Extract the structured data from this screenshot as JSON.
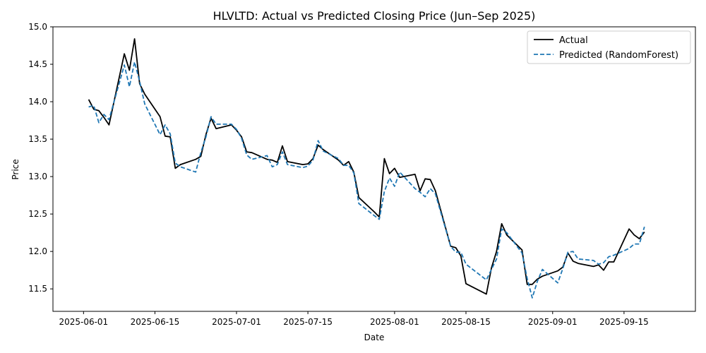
{
  "chart_data": {
    "type": "line",
    "title": "HLVLTD: Actual vs Predicted Closing Price (Jun–Sep 2025)",
    "xlabel": "Date",
    "ylabel": "Price",
    "xlim": [
      "2025-05-26",
      "2025-09-29"
    ],
    "ylim": [
      11.2,
      15.0
    ],
    "x_ticks": [
      "2025-06-01",
      "2025-06-15",
      "2025-07-01",
      "2025-07-15",
      "2025-08-01",
      "2025-08-15",
      "2025-09-01",
      "2025-09-15"
    ],
    "y_ticks": [
      11.5,
      12.0,
      12.5,
      13.0,
      13.5,
      14.0,
      14.5,
      15.0
    ],
    "y_tick_labels": [
      "11.5",
      "12.0",
      "12.5",
      "13.0",
      "13.5",
      "14.0",
      "14.5",
      "15.0"
    ],
    "grid": false,
    "legend_position": "top-right",
    "series": [
      {
        "name": "Actual",
        "color": "#000000",
        "style": "solid",
        "points": [
          [
            "2025-06-02",
            14.03
          ],
          [
            "2025-06-03",
            13.9
          ],
          [
            "2025-06-04",
            13.88
          ],
          [
            "2025-06-05",
            13.79
          ],
          [
            "2025-06-06",
            13.69
          ],
          [
            "2025-06-09",
            14.64
          ],
          [
            "2025-06-10",
            14.42
          ],
          [
            "2025-06-11",
            14.84
          ],
          [
            "2025-06-12",
            14.24
          ],
          [
            "2025-06-13",
            14.1
          ],
          [
            "2025-06-16",
            13.8
          ],
          [
            "2025-06-17",
            13.54
          ],
          [
            "2025-06-18",
            13.53
          ],
          [
            "2025-06-19",
            13.11
          ],
          [
            "2025-06-20",
            13.16
          ],
          [
            "2025-06-23",
            13.23
          ],
          [
            "2025-06-24",
            13.27
          ],
          [
            "2025-06-25",
            13.56
          ],
          [
            "2025-06-26",
            13.78
          ],
          [
            "2025-06-27",
            13.64
          ],
          [
            "2025-06-30",
            13.69
          ],
          [
            "2025-07-01",
            13.62
          ],
          [
            "2025-07-02",
            13.53
          ],
          [
            "2025-07-03",
            13.33
          ],
          [
            "2025-07-04",
            13.32
          ],
          [
            "2025-07-07",
            13.23
          ],
          [
            "2025-07-08",
            13.22
          ],
          [
            "2025-07-09",
            13.19
          ],
          [
            "2025-07-10",
            13.41
          ],
          [
            "2025-07-11",
            13.2
          ],
          [
            "2025-07-14",
            13.16
          ],
          [
            "2025-07-15",
            13.17
          ],
          [
            "2025-07-16",
            13.24
          ],
          [
            "2025-07-17",
            13.42
          ],
          [
            "2025-07-18",
            13.36
          ],
          [
            "2025-07-21",
            13.22
          ],
          [
            "2025-07-22",
            13.15
          ],
          [
            "2025-07-23",
            13.2
          ],
          [
            "2025-07-24",
            13.06
          ],
          [
            "2025-07-25",
            12.72
          ],
          [
            "2025-07-28",
            12.53
          ],
          [
            "2025-07-29",
            12.46
          ],
          [
            "2025-07-30",
            13.24
          ],
          [
            "2025-07-31",
            13.04
          ],
          [
            "2025-08-01",
            13.11
          ],
          [
            "2025-08-02",
            12.99
          ],
          [
            "2025-08-05",
            13.03
          ],
          [
            "2025-08-06",
            12.81
          ],
          [
            "2025-08-07",
            12.97
          ],
          [
            "2025-08-08",
            12.96
          ],
          [
            "2025-08-09",
            12.81
          ],
          [
            "2025-08-12",
            12.07
          ],
          [
            "2025-08-13",
            12.05
          ],
          [
            "2025-08-14",
            11.94
          ],
          [
            "2025-08-15",
            11.57
          ],
          [
            "2025-08-19",
            11.43
          ],
          [
            "2025-08-20",
            11.78
          ],
          [
            "2025-08-21",
            12.0
          ],
          [
            "2025-08-22",
            12.37
          ],
          [
            "2025-08-23",
            12.22
          ],
          [
            "2025-08-26",
            12.02
          ],
          [
            "2025-08-27",
            11.56
          ],
          [
            "2025-08-28",
            11.56
          ],
          [
            "2025-08-29",
            11.63
          ],
          [
            "2025-08-30",
            11.67
          ],
          [
            "2025-09-02",
            11.74
          ],
          [
            "2025-09-03",
            11.79
          ],
          [
            "2025-09-04",
            11.98
          ],
          [
            "2025-09-05",
            11.87
          ],
          [
            "2025-09-06",
            11.84
          ],
          [
            "2025-09-09",
            11.8
          ],
          [
            "2025-09-10",
            11.82
          ],
          [
            "2025-09-11",
            11.75
          ],
          [
            "2025-09-12",
            11.86
          ],
          [
            "2025-09-13",
            11.86
          ],
          [
            "2025-09-16",
            12.3
          ],
          [
            "2025-09-17",
            12.22
          ],
          [
            "2025-09-18",
            12.17
          ],
          [
            "2025-09-19",
            12.26
          ]
        ]
      },
      {
        "name": "Predicted (RandomForest)",
        "color": "#1f77b4",
        "style": "dashed",
        "points": [
          [
            "2025-06-02",
            13.93
          ],
          [
            "2025-06-03",
            13.95
          ],
          [
            "2025-06-04",
            13.72
          ],
          [
            "2025-06-05",
            13.83
          ],
          [
            "2025-06-06",
            13.76
          ],
          [
            "2025-06-09",
            14.49
          ],
          [
            "2025-06-10",
            14.2
          ],
          [
            "2025-06-11",
            14.53
          ],
          [
            "2025-06-12",
            14.27
          ],
          [
            "2025-06-13",
            13.97
          ],
          [
            "2025-06-16",
            13.56
          ],
          [
            "2025-06-17",
            13.69
          ],
          [
            "2025-06-18",
            13.57
          ],
          [
            "2025-06-19",
            13.18
          ],
          [
            "2025-06-20",
            13.13
          ],
          [
            "2025-06-23",
            13.06
          ],
          [
            "2025-06-24",
            13.32
          ],
          [
            "2025-06-25",
            13.53
          ],
          [
            "2025-06-26",
            13.8
          ],
          [
            "2025-06-27",
            13.7
          ],
          [
            "2025-06-30",
            13.7
          ],
          [
            "2025-07-01",
            13.63
          ],
          [
            "2025-07-02",
            13.51
          ],
          [
            "2025-07-03",
            13.29
          ],
          [
            "2025-07-04",
            13.23
          ],
          [
            "2025-07-07",
            13.28
          ],
          [
            "2025-07-08",
            13.13
          ],
          [
            "2025-07-09",
            13.16
          ],
          [
            "2025-07-10",
            13.33
          ],
          [
            "2025-07-11",
            13.16
          ],
          [
            "2025-07-14",
            13.12
          ],
          [
            "2025-07-15",
            13.14
          ],
          [
            "2025-07-16",
            13.22
          ],
          [
            "2025-07-17",
            13.48
          ],
          [
            "2025-07-18",
            13.34
          ],
          [
            "2025-07-21",
            13.24
          ],
          [
            "2025-07-22",
            13.15
          ],
          [
            "2025-07-23",
            13.15
          ],
          [
            "2025-07-24",
            13.05
          ],
          [
            "2025-07-25",
            12.64
          ],
          [
            "2025-07-28",
            12.48
          ],
          [
            "2025-07-29",
            12.43
          ],
          [
            "2025-07-30",
            12.8
          ],
          [
            "2025-07-31",
            12.98
          ],
          [
            "2025-08-01",
            12.87
          ],
          [
            "2025-08-02",
            13.06
          ],
          [
            "2025-08-05",
            12.84
          ],
          [
            "2025-08-06",
            12.79
          ],
          [
            "2025-08-07",
            12.73
          ],
          [
            "2025-08-08",
            12.84
          ],
          [
            "2025-08-09",
            12.77
          ],
          [
            "2025-08-12",
            12.07
          ],
          [
            "2025-08-13",
            11.99
          ],
          [
            "2025-08-14",
            11.99
          ],
          [
            "2025-08-15",
            11.83
          ],
          [
            "2025-08-19",
            11.62
          ],
          [
            "2025-08-20",
            11.76
          ],
          [
            "2025-08-21",
            11.9
          ],
          [
            "2025-08-22",
            12.3
          ],
          [
            "2025-08-23",
            12.25
          ],
          [
            "2025-08-26",
            11.98
          ],
          [
            "2025-08-27",
            11.64
          ],
          [
            "2025-08-28",
            11.38
          ],
          [
            "2025-08-29",
            11.6
          ],
          [
            "2025-08-30",
            11.76
          ],
          [
            "2025-09-02",
            11.58
          ],
          [
            "2025-09-03",
            11.77
          ],
          [
            "2025-09-04",
            11.99
          ],
          [
            "2025-09-05",
            12.0
          ],
          [
            "2025-09-06",
            11.9
          ],
          [
            "2025-09-09",
            11.88
          ],
          [
            "2025-09-10",
            11.83
          ],
          [
            "2025-09-11",
            11.85
          ],
          [
            "2025-09-12",
            11.93
          ],
          [
            "2025-09-13",
            11.95
          ],
          [
            "2025-09-16",
            12.04
          ],
          [
            "2025-09-17",
            12.1
          ],
          [
            "2025-09-18",
            12.1
          ],
          [
            "2025-09-19",
            12.33
          ]
        ]
      }
    ]
  }
}
